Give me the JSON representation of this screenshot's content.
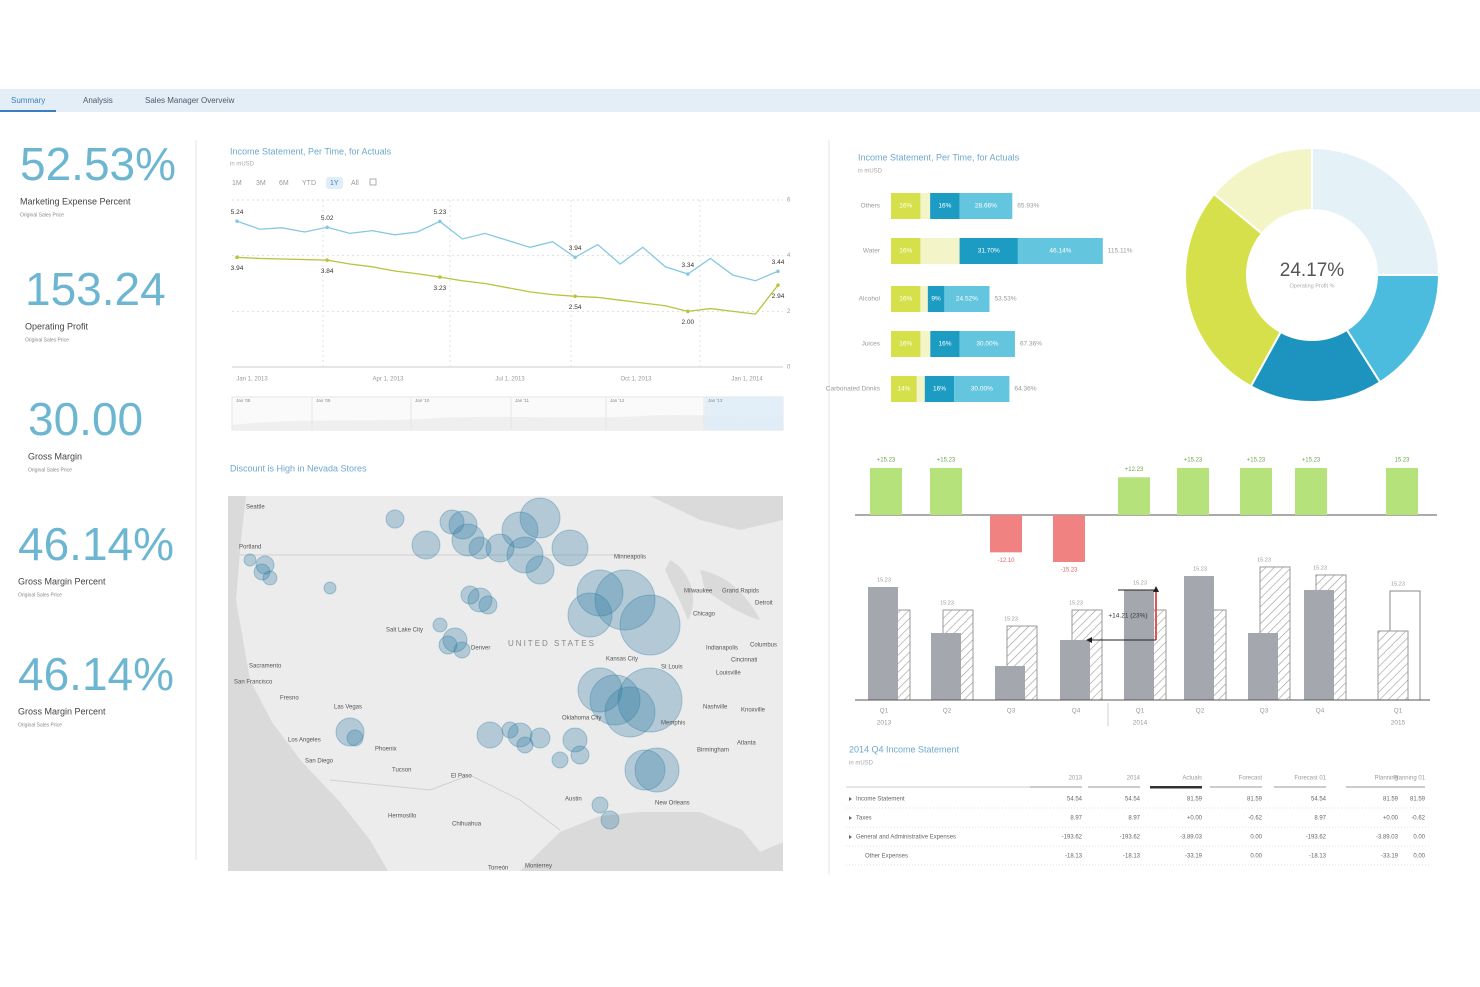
{
  "tabs": [
    "Summary",
    "Analysis",
    "Sales Manager Overveiw"
  ],
  "selected_tab": 0,
  "kpis": [
    {
      "value": "52.53%",
      "label": "Marketing Expense Percent",
      "note": "Original Sales Price"
    },
    {
      "value": "153.24",
      "label": "Operating Profit",
      "note": "Original Sales Price"
    },
    {
      "value": "30.00",
      "label": "Gross Margin",
      "note": "Original Sales Price"
    },
    {
      "value": "46.14%",
      "label": "Gross Margin Percent",
      "note": "Original Sales Price"
    },
    {
      "value": "46.14%",
      "label": "Gross Margin Percent",
      "note": "Original Sales Price"
    }
  ],
  "line_chart": {
    "type": "line",
    "title": "Income Statement, Per Time, for Actuals",
    "subtitle": "in mUSD",
    "ranges": [
      "1M",
      "3M",
      "6M",
      "YTD",
      "1Y",
      "All"
    ],
    "selected_range": 4,
    "x_labels": [
      "Jan 1, 2013",
      "Apr 1, 2013",
      "Jul 1, 2013",
      "Oct 1, 2013",
      "Jan 1, 2014"
    ],
    "ylim": [
      0,
      6
    ],
    "yticks": [
      0,
      2,
      4,
      6
    ],
    "grid": true,
    "series": [
      {
        "color": "#86c8e2",
        "values": [
          5.24,
          4.95,
          5.0,
          4.85,
          5.02,
          4.8,
          4.9,
          4.75,
          4.85,
          5.23,
          4.6,
          4.8,
          4.55,
          4.3,
          4.5,
          3.94,
          4.4,
          3.7,
          4.3,
          3.6,
          3.34,
          3.9,
          3.3,
          3.1,
          3.44
        ],
        "value_labels": [
          "5.24",
          null,
          null,
          null,
          "5.02",
          null,
          null,
          null,
          null,
          "5.23",
          null,
          null,
          null,
          null,
          null,
          "3.94",
          null,
          null,
          null,
          null,
          "3.34",
          null,
          null,
          null,
          "3.44"
        ]
      },
      {
        "color": "#b8c43a",
        "values": [
          3.94,
          3.9,
          3.88,
          3.86,
          3.84,
          3.7,
          3.6,
          3.45,
          3.35,
          3.23,
          3.1,
          3.0,
          2.85,
          2.7,
          2.6,
          2.54,
          2.5,
          2.4,
          2.3,
          2.2,
          2.0,
          2.1,
          2.0,
          1.9,
          2.94
        ],
        "value_labels": [
          "3.94",
          null,
          null,
          null,
          "3.84",
          null,
          null,
          null,
          null,
          "3.23",
          null,
          null,
          null,
          null,
          null,
          "2.54",
          null,
          null,
          null,
          null,
          "2.00",
          null,
          null,
          null,
          "2.94"
        ]
      }
    ],
    "navigator_labels": [
      "Jan '08",
      "Jan '09",
      "Jan '10",
      "Jan '11",
      "Jan '12",
      "Jan '13"
    ]
  },
  "map": {
    "title": "Discount is High in Nevada Stores",
    "country": "UNITED STATES",
    "cities": [
      "Seattle",
      "Portland",
      "Minneapolis",
      "Milwaukee",
      "Grand Rapids",
      "Detroit",
      "Chicago",
      "Salt Lake City",
      "Denver",
      "Sacramento",
      "San Francisco",
      "Fresno",
      "Las Vegas",
      "Los Angeles",
      "San Diego",
      "Phoenix",
      "Tucson",
      "El Paso",
      "Kansas City",
      "St Louis",
      "Indianapolis",
      "Columbus",
      "Cincinnati",
      "Louisville",
      "Nashville",
      "Knoxville",
      "Memphis",
      "Oklahoma City",
      "Birmingham",
      "Atlanta",
      "Austin",
      "New Orleans",
      "Hermosillo",
      "Chihuahua",
      "Torreón",
      "Monterrey"
    ],
    "bubble_color": "#2f7aa3"
  },
  "stacked_bars": {
    "type": "bar",
    "orientation": "horizontal",
    "title": "Income Statement, Per Time, for Actuals",
    "subtitle": "in mUSD",
    "categories": [
      "Others",
      "Water",
      "Alcohol",
      "Juices",
      "Carbonated Drinks"
    ],
    "series": [
      {
        "color": "#d6e04a",
        "values": [
          16,
          16,
          16,
          16,
          14
        ],
        "value_labels": [
          "16%",
          "16%",
          "16%",
          "16%",
          "14%"
        ]
      },
      {
        "color": "#f3f5c8",
        "values": [
          5.27,
          21.27,
          4.01,
          5.36,
          4.36
        ]
      },
      {
        "color": "#1d9cc3",
        "values": [
          16,
          31.7,
          9,
          16,
          16
        ],
        "value_labels": [
          "16%",
          "31.70%",
          "9%",
          "16%",
          "16%"
        ]
      },
      {
        "color": "#63c5de",
        "values": [
          28.66,
          46.14,
          24.52,
          30,
          30
        ],
        "value_labels": [
          "28.66%",
          "46.14%",
          "24.52%",
          "30.00%",
          "30.00%"
        ]
      }
    ],
    "total_labels": [
      "65.93%",
      "115.11%",
      "53.53%",
      "67.36%",
      "64.36%"
    ]
  },
  "donut": {
    "type": "pie",
    "value_label": "24.17%",
    "label": "Operating Profit %",
    "values": [
      25,
      16,
      17,
      28,
      14
    ],
    "colors": [
      "#e4f1f7",
      "#4bbcdd",
      "#1d93bf",
      "#d6e04a",
      "#f4f5c6"
    ]
  },
  "waterfall": {
    "type": "bar",
    "values": [
      15.23,
      15.23,
      -12.1,
      -15.23,
      12.23,
      15.23,
      15.23,
      15.23,
      15.23
    ],
    "value_labels": [
      "+15.23",
      "+15.23",
      "-12.10",
      "-15.23",
      "+12.23",
      "+15.23",
      "+15.23",
      "+15.23",
      "15.23"
    ],
    "positive_color": "#b6e27c",
    "negative_color": "#f08282"
  },
  "quarter_bars": {
    "type": "bar",
    "categories": [
      "Q1",
      "Q2",
      "Q3",
      "Q4",
      "Q1",
      "Q2",
      "Q3",
      "Q4",
      "Q1"
    ],
    "years": [
      "2013",
      null,
      null,
      null,
      "2014",
      null,
      null,
      null,
      "2015"
    ],
    "actual": [
      15.23,
      9.03,
      4.58,
      8.09,
      14.83,
      16.71,
      9.03,
      14.83,
      null
    ],
    "plan": [
      12.13,
      12.13,
      9.97,
      12.13,
      12.13,
      12.13,
      17.93,
      16.85,
      9.3
    ],
    "forecast": [
      null,
      null,
      null,
      null,
      null,
      null,
      null,
      null,
      14.69
    ],
    "annotations": [
      "15.23",
      "15.23",
      "15.23",
      "15.23",
      "15.23",
      "15.23",
      "15.23",
      "15.23",
      "15.23"
    ],
    "variance_label": "+14.21 (23%)",
    "actual_color": "#a4a8ae"
  },
  "table": {
    "title": "2014 Q4 Income Statement",
    "subtitle": "in mUSD",
    "columns": [
      "2013",
      "2014",
      "Actuals",
      "Forecast",
      "Forecast 01",
      "Planning",
      "Planning 01"
    ],
    "rows": [
      {
        "label": "Income Statement",
        "expandable": true,
        "cells": [
          "54.54",
          "54.54",
          "81.59",
          "81.59",
          "54.54",
          "81.59",
          "81.59"
        ]
      },
      {
        "label": "Taxes",
        "expandable": true,
        "cells": [
          "8.97",
          "8.97",
          "+0.00",
          "-0.62",
          "8.97",
          "+0.00",
          "-0.62"
        ]
      },
      {
        "label": "General and Administrative Expenses",
        "expandable": true,
        "cells": [
          "-193.62",
          "-193.62",
          "-3.89.03",
          "0.00",
          "-193.62",
          "-3.89.03",
          "0.00"
        ]
      },
      {
        "label": "Other Expenses",
        "expandable": false,
        "cells": [
          "-18.13",
          "-18.13",
          "-33.19",
          "0.00",
          "-18.13",
          "-33.19",
          "0.00"
        ]
      }
    ]
  }
}
